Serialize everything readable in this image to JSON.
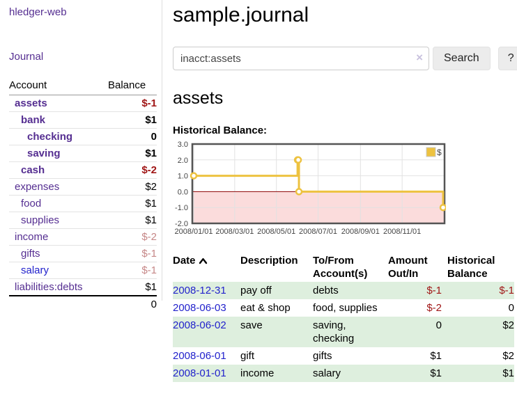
{
  "app": {
    "brand": "hledger-web",
    "nav_journal": "Journal"
  },
  "colors": {
    "link_purple": "#552e91",
    "link_blue": "#2222cc",
    "negative": "#a01616",
    "negative_soft": "#c68787",
    "row_stripe_green": "#deefde",
    "chart_line": "#edc240",
    "chart_negative_fill": "#fbdcdc",
    "chart_zero_line": "#8b0000"
  },
  "sidebar": {
    "table": {
      "headers": {
        "account": "Account",
        "balance": "Balance"
      },
      "rows": [
        {
          "name": "assets",
          "balance": "$-1",
          "depth": 1,
          "bold": true,
          "balance_style": "neg",
          "link_style": "purple"
        },
        {
          "name": "bank",
          "balance": "$1",
          "depth": 2,
          "bold": true,
          "balance_style": "plain",
          "link_style": "purple"
        },
        {
          "name": "checking",
          "balance": "0",
          "depth": 3,
          "bold": true,
          "balance_style": "plain",
          "link_style": "purple"
        },
        {
          "name": "saving",
          "balance": "$1",
          "depth": 3,
          "bold": true,
          "balance_style": "plain",
          "link_style": "purple"
        },
        {
          "name": "cash",
          "balance": "$-2",
          "depth": 2,
          "bold": true,
          "balance_style": "neg",
          "link_style": "purple"
        },
        {
          "name": "expenses",
          "balance": "$2",
          "depth": 1,
          "bold": false,
          "balance_style": "plain",
          "link_style": "purple"
        },
        {
          "name": "food",
          "balance": "$1",
          "depth": 2,
          "bold": false,
          "balance_style": "plain",
          "link_style": "purple"
        },
        {
          "name": "supplies",
          "balance": "$1",
          "depth": 2,
          "bold": false,
          "balance_style": "plain",
          "link_style": "purple"
        },
        {
          "name": "income",
          "balance": "$-2",
          "depth": 1,
          "bold": false,
          "balance_style": "soft-neg",
          "link_style": "purple"
        },
        {
          "name": "gifts",
          "balance": "$-1",
          "depth": 2,
          "bold": false,
          "balance_style": "soft-neg",
          "link_style": "purple"
        },
        {
          "name": "salary",
          "balance": "$-1",
          "depth": 2,
          "bold": false,
          "balance_style": "soft-neg",
          "link_style": "blue"
        },
        {
          "name": "liabilities:debts",
          "balance": "$1",
          "depth": 1,
          "bold": false,
          "balance_style": "plain",
          "link_style": "purple"
        }
      ],
      "total": "0"
    }
  },
  "header": {
    "title": "sample.journal"
  },
  "search": {
    "value": "inacct:assets",
    "clear_icon": "×",
    "button_label": "Search",
    "help_label": "?"
  },
  "account_page": {
    "heading": "assets",
    "chart_label": "Historical Balance:"
  },
  "chart_data": {
    "type": "line",
    "title": "Historical Balance",
    "series": [
      {
        "name": "$",
        "color": "#edc240",
        "step": true,
        "points": [
          [
            "2008-01-01",
            1
          ],
          [
            "2008-06-01",
            2
          ],
          [
            "2008-06-02",
            2
          ],
          [
            "2008-06-03",
            0
          ],
          [
            "2008-12-31",
            -1
          ]
        ]
      }
    ],
    "x_range": [
      "2008-01-01",
      "2008-12-31"
    ],
    "ylim": [
      -2,
      3
    ],
    "y_ticks": [
      3.0,
      2.0,
      1.0,
      0.0,
      -1.0,
      -2.0
    ],
    "x_ticks": [
      "2008/01/01",
      "2008/03/01",
      "2008/05/01",
      "2008/07/01",
      "2008/09/01",
      "2008/11/01"
    ],
    "grid": true,
    "legend": {
      "label": "$",
      "position": "top-right"
    },
    "negative_region_color": "#fbdcdc",
    "zero_line_color": "#8b0000"
  },
  "register": {
    "columns": [
      {
        "label": "Date",
        "sortable": true,
        "sort_icon": "chevron-up"
      },
      {
        "label": "Description"
      },
      {
        "label": "To/From Account(s)"
      },
      {
        "label": "Amount Out/In",
        "align": "right"
      },
      {
        "label": "Historical Balance",
        "align": "right"
      }
    ],
    "rows": [
      {
        "date": "2008-12-31",
        "description": "pay off",
        "accounts": "debts",
        "amount": "$-1",
        "amount_style": "neg",
        "balance": "$-1",
        "balance_style": "neg"
      },
      {
        "date": "2008-06-03",
        "description": "eat & shop",
        "accounts": "food, supplies",
        "amount": "$-2",
        "amount_style": "neg",
        "balance": "0",
        "balance_style": "plain"
      },
      {
        "date": "2008-06-02",
        "description": "save",
        "accounts": "saving, checking",
        "amount": "0",
        "amount_style": "plain",
        "balance": "$2",
        "balance_style": "plain"
      },
      {
        "date": "2008-06-01",
        "description": "gift",
        "accounts": "gifts",
        "amount": "$1",
        "amount_style": "plain",
        "balance": "$2",
        "balance_style": "plain"
      },
      {
        "date": "2008-01-01",
        "description": "income",
        "accounts": "salary",
        "amount": "$1",
        "amount_style": "plain",
        "balance": "$1",
        "balance_style": "plain"
      }
    ]
  }
}
